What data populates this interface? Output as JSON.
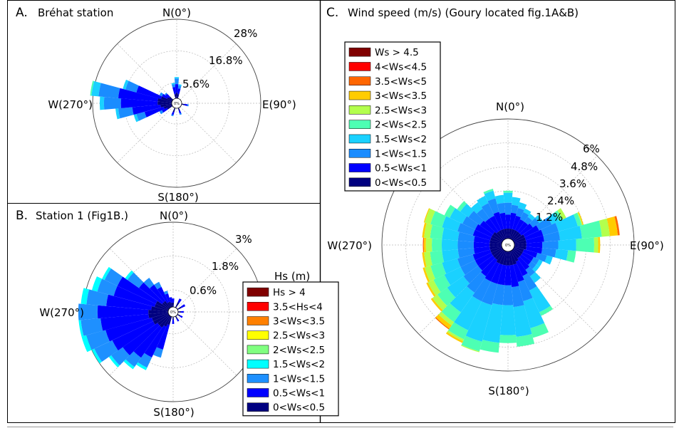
{
  "panels": {
    "a": {
      "letter": "A.",
      "title": "Bréhat station",
      "compass": {
        "n": "N(0°)",
        "e": "E(90°)",
        "s": "S(180°)",
        "w": "W(270°)"
      },
      "ring_labels": [
        "5.6%",
        "16.8%",
        "28%"
      ],
      "center_label": "0%"
    },
    "b": {
      "letter": "B.",
      "title": "Station 1 (Fig1B.)",
      "compass": {
        "n": "N(0°)",
        "s": "S(180°)",
        "w": "W(270°)"
      },
      "ring_labels": [
        "0.6%",
        "1.8%",
        "3%"
      ],
      "center_label": "0%",
      "legend_title": "Hs (m)",
      "legend": [
        {
          "label": "Hs > 4",
          "color": "#800000"
        },
        {
          "label": "3.5<Hs<4",
          "color": "#ff0000"
        },
        {
          "label": "3<Ws<3.5",
          "color": "#ff8000"
        },
        {
          "label": "2.5<Ws<3",
          "color": "#ffff00"
        },
        {
          "label": "2<Ws<2.5",
          "color": "#80ff80"
        },
        {
          "label": "1.5<Ws<2",
          "color": "#00ffff"
        },
        {
          "label": "1<Ws<1.5",
          "color": "#1e90ff"
        },
        {
          "label": "0.5<Ws<1",
          "color": "#0000ff"
        },
        {
          "label": "0<Ws<0.5",
          "color": "#000080"
        }
      ]
    },
    "c": {
      "letter": "C.",
      "title": "Wind speed (m/s) (Goury located fig.1A&B)",
      "compass": {
        "n": "N(0°)",
        "e": "E(90°)",
        "s": "S(180°)",
        "w": "W(270°)"
      },
      "ring_labels": [
        "1.2%",
        "2.4%",
        "3.6%",
        "4.8%",
        "6%"
      ],
      "center_label": "0%",
      "legend": [
        {
          "label": "Ws > 4.5",
          "color": "#800000"
        },
        {
          "label": "4<Ws<4.5",
          "color": "#ff0000"
        },
        {
          "label": "3.5<Ws<5",
          "color": "#ff6600"
        },
        {
          "label": "3<Ws<3.5",
          "color": "#ffcc00"
        },
        {
          "label": "2.5<Ws<3",
          "color": "#b3ff4d"
        },
        {
          "label": "2<Ws<2.5",
          "color": "#4dffb3"
        },
        {
          "label": "1.5<Ws<2",
          "color": "#1ad1ff"
        },
        {
          "label": "1<Ws<1.5",
          "color": "#1a8cff"
        },
        {
          "label": "0.5<Ws<1",
          "color": "#0000ff"
        },
        {
          "label": "0<Ws<0.5",
          "color": "#000080"
        }
      ]
    }
  },
  "chart_data": [
    {
      "type": "rose",
      "title": "Bréhat station",
      "radial_ticks": [
        5.6,
        16.8,
        28
      ],
      "rlim": [
        0,
        28
      ],
      "unit": "%",
      "grid": true,
      "bins": [
        "0<Ws<0.5",
        "0.5<Ws<1",
        "1<Ws<1.5",
        "1.5<Ws<2",
        "2<Ws<2.5",
        "2.5<Ws<3",
        "3<Ws<3.5",
        "3.5<Ws<5",
        "4<Ws<4.5",
        "Ws > 4.5"
      ],
      "colors": [
        "#000080",
        "#0000ff",
        "#1a8cff",
        "#1ad1ff",
        "#4dffb3",
        "#b3ff4d",
        "#ffcc00",
        "#ff6600",
        "#ff0000",
        "#800000"
      ],
      "sectors": [
        {
          "dir": 0,
          "cum": [
            2,
            5,
            7,
            7.5
          ]
        },
        {
          "dir": 10,
          "cum": [
            1.5,
            3.5,
            4.5,
            5
          ]
        },
        {
          "dir": 350,
          "cum": [
            1.5,
            4,
            5,
            5.5
          ]
        },
        {
          "dir": 100,
          "cum": [
            1,
            2,
            2.5
          ]
        },
        {
          "dir": 160,
          "cum": [
            1,
            2,
            2.5
          ]
        },
        {
          "dir": 200,
          "cum": [
            1.5,
            2.5,
            3
          ]
        },
        {
          "dir": 240,
          "cum": [
            2,
            4,
            5
          ]
        },
        {
          "dir": 250,
          "cum": [
            3,
            10,
            13,
            14
          ]
        },
        {
          "dir": 260,
          "cum": [
            4,
            14,
            19,
            20
          ]
        },
        {
          "dir": 270,
          "cum": [
            5,
            18,
            24,
            25.5
          ]
        },
        {
          "dir": 280,
          "cum": [
            5,
            19,
            26,
            28.5,
            29
          ]
        },
        {
          "dir": 290,
          "cum": [
            4,
            13,
            17,
            18
          ]
        },
        {
          "dir": 300,
          "cum": [
            2,
            4,
            5
          ]
        },
        {
          "dir": 310,
          "cum": [
            1.5,
            3,
            3.5
          ]
        }
      ]
    },
    {
      "type": "rose",
      "title": "Station 1 (Fig1B.)",
      "radial_ticks": [
        0.6,
        1.8,
        3
      ],
      "rlim": [
        0,
        3
      ],
      "unit": "%",
      "grid": true,
      "bins": [
        "0<Ws<0.5",
        "0.5<Ws<1",
        "1<Ws<1.5",
        "1.5<Ws<2",
        "2<Ws<2.5",
        "2.5<Ws<3",
        "3<Ws<3.5",
        "3.5<Hs<4",
        "Hs > 4"
      ],
      "colors": [
        "#000080",
        "#0000ff",
        "#1e90ff",
        "#00ffff",
        "#80ff80",
        "#ffff00",
        "#ff8000",
        "#ff0000",
        "#800000"
      ],
      "sectors": [
        {
          "dir": 0,
          "cum": [
            0.15,
            0.3
          ]
        },
        {
          "dir": 30,
          "cum": [
            0.2,
            0.35
          ]
        },
        {
          "dir": 60,
          "cum": [
            0.15,
            0.3
          ]
        },
        {
          "dir": 90,
          "cum": [
            0.1,
            0.2
          ]
        },
        {
          "dir": 120,
          "cum": [
            0.1,
            0.2
          ]
        },
        {
          "dir": 150,
          "cum": [
            0.1,
            0.2
          ]
        },
        {
          "dir": 180,
          "cum": [
            0.1,
            0.25
          ]
        },
        {
          "dir": 200,
          "cum": [
            0.3,
            1.2,
            1.5
          ]
        },
        {
          "dir": 210,
          "cum": [
            0.4,
            1.6,
            2,
            2.1
          ]
        },
        {
          "dir": 220,
          "cum": [
            0.5,
            1.8,
            2.2,
            2.3
          ]
        },
        {
          "dir": 230,
          "cum": [
            0.5,
            2,
            2.5,
            2.6
          ]
        },
        {
          "dir": 240,
          "cum": [
            0.6,
            2.2,
            2.9,
            3.0
          ]
        },
        {
          "dir": 250,
          "cum": [
            0.6,
            2.3,
            3,
            3.3
          ]
        },
        {
          "dir": 260,
          "cum": [
            0.7,
            2.4,
            3.1,
            3.4
          ]
        },
        {
          "dir": 270,
          "cum": [
            0.7,
            2.5,
            3.2,
            3.4
          ]
        },
        {
          "dir": 280,
          "cum": [
            0.6,
            2.2,
            2.9,
            3.1
          ]
        },
        {
          "dir": 290,
          "cum": [
            0.5,
            2,
            2.6,
            2.8
          ]
        },
        {
          "dir": 300,
          "cum": [
            0.5,
            2,
            2.5,
            2.6
          ]
        },
        {
          "dir": 310,
          "cum": [
            0.3,
            1.3,
            1.8,
            1.9
          ]
        },
        {
          "dir": 320,
          "cum": [
            0.3,
            1,
            1.3
          ]
        },
        {
          "dir": 330,
          "cum": [
            0.2,
            0.8,
            1
          ]
        },
        {
          "dir": 340,
          "cum": [
            0.2,
            0.5,
            0.6
          ]
        },
        {
          "dir": 350,
          "cum": [
            0.15,
            0.35
          ]
        }
      ]
    },
    {
      "type": "rose",
      "title": "Wind speed (m/s) (Goury located fig.1A&B)",
      "radial_ticks": [
        1.2,
        2.4,
        3.6,
        4.8,
        6
      ],
      "rlim": [
        0,
        6
      ],
      "unit": "%",
      "grid": true,
      "bins": [
        "0<Ws<0.5",
        "0.5<Ws<1",
        "1<Ws<1.5",
        "1.5<Ws<2",
        "2<Ws<2.5",
        "2.5<Ws<3",
        "3<Ws<3.5",
        "3.5<Ws<5",
        "4<Ws<4.5",
        "Ws > 4.5"
      ],
      "colors": [
        "#000080",
        "#0000ff",
        "#1a8cff",
        "#1ad1ff",
        "#4dffb3",
        "#b3ff4d",
        "#ffcc00",
        "#ff6600",
        "#ff0000",
        "#800000"
      ],
      "sectors": [
        {
          "dir": 0,
          "cum": [
            0.5,
            1.2,
            1.8,
            2.3,
            2.4
          ]
        },
        {
          "dir": 10,
          "cum": [
            0.5,
            1.3,
            1.7,
            2.1
          ]
        },
        {
          "dir": 20,
          "cum": [
            0.5,
            1.2,
            1.6,
            1.9
          ]
        },
        {
          "dir": 30,
          "cum": [
            0.5,
            1.1,
            1.5,
            1.7
          ]
        },
        {
          "dir": 40,
          "cum": [
            0.5,
            1.1,
            1.4,
            1.6
          ]
        },
        {
          "dir": 50,
          "cum": [
            0.5,
            1.2,
            1.6,
            1.8
          ]
        },
        {
          "dir": 60,
          "cum": [
            0.6,
            1.4,
            2.1,
            2.5,
            2.7,
            2.9
          ]
        },
        {
          "dir": 70,
          "cum": [
            0.6,
            1.5,
            2.3,
            3.3,
            3.5,
            3.55,
            3.6
          ]
        },
        {
          "dir": 80,
          "cum": [
            0.6,
            1.5,
            2.3,
            3.4,
            4.4,
            4.8,
            5.2,
            5.3
          ]
        },
        {
          "dir": 90,
          "cum": [
            0.6,
            1.4,
            2.2,
            3.1,
            4.0,
            4.2,
            4.3
          ]
        },
        {
          "dir": 100,
          "cum": [
            0.6,
            1.4,
            2.1,
            2.7,
            3.1
          ]
        },
        {
          "dir": 110,
          "cum": [
            0.5,
            1.2,
            1.7,
            2.0
          ]
        },
        {
          "dir": 120,
          "cum": [
            0.5,
            1.1,
            1.4,
            1.6
          ]
        },
        {
          "dir": 130,
          "cum": [
            0.5,
            1.1,
            1.4,
            1.6
          ]
        },
        {
          "dir": 140,
          "cum": [
            0.5,
            1.2,
            1.6,
            2.0
          ]
        },
        {
          "dir": 150,
          "cum": [
            0.6,
            1.4,
            2.2,
            3.4,
            3.6
          ]
        },
        {
          "dir": 160,
          "cum": [
            0.7,
            1.6,
            2.6,
            4.0,
            4.5
          ]
        },
        {
          "dir": 170,
          "cum": [
            0.7,
            1.8,
            2.8,
            4.3,
            4.8
          ]
        },
        {
          "dir": 180,
          "cum": [
            0.7,
            1.7,
            2.7,
            4.2,
            4.6
          ]
        },
        {
          "dir": 190,
          "cum": [
            0.7,
            1.7,
            2.7,
            4.6,
            5.1
          ]
        },
        {
          "dir": 200,
          "cum": [
            0.7,
            1.7,
            2.8,
            4.7,
            5.2,
            5.25
          ]
        },
        {
          "dir": 210,
          "cum": [
            0.7,
            1.7,
            2.8,
            4.4,
            4.9,
            5.0,
            5.1
          ]
        },
        {
          "dir": 220,
          "cum": [
            0.6,
            1.6,
            2.6,
            3.8,
            4.4,
            4.6,
            4.8,
            4.85
          ]
        },
        {
          "dir": 230,
          "cum": [
            0.6,
            1.5,
            2.4,
            3.4,
            4.0,
            4.3,
            4.4
          ]
        },
        {
          "dir": 240,
          "cum": [
            0.6,
            1.5,
            2.3,
            3.2,
            3.8,
            4.1,
            4.2
          ]
        },
        {
          "dir": 250,
          "cum": [
            0.6,
            1.5,
            2.3,
            3.1,
            3.7,
            4.0,
            4.1
          ]
        },
        {
          "dir": 260,
          "cum": [
            0.6,
            1.4,
            2.2,
            3.0,
            3.6,
            3.9,
            4.0
          ]
        },
        {
          "dir": 270,
          "cum": [
            0.6,
            1.4,
            2.2,
            3.0,
            3.5,
            3.8,
            3.9,
            3.95
          ]
        },
        {
          "dir": 280,
          "cum": [
            0.6,
            1.4,
            2.2,
            3.0,
            3.6,
            3.9,
            4.0
          ]
        },
        {
          "dir": 290,
          "cum": [
            0.6,
            1.5,
            2.3,
            3.1,
            3.7,
            4.0,
            4.05
          ]
        },
        {
          "dir": 300,
          "cum": [
            0.6,
            1.5,
            2.2,
            2.9,
            3.2
          ]
        },
        {
          "dir": 310,
          "cum": [
            0.6,
            1.4,
            2.1,
            2.6,
            2.8
          ]
        },
        {
          "dir": 320,
          "cum": [
            0.5,
            1.3,
            1.9,
            2.3
          ]
        },
        {
          "dir": 330,
          "cum": [
            0.5,
            1.3,
            2.0,
            2.4
          ]
        },
        {
          "dir": 340,
          "cum": [
            0.5,
            1.4,
            2.1,
            2.5,
            2.6
          ]
        },
        {
          "dir": 350,
          "cum": [
            0.5,
            1.3,
            1.8,
            2.2
          ]
        }
      ]
    }
  ]
}
